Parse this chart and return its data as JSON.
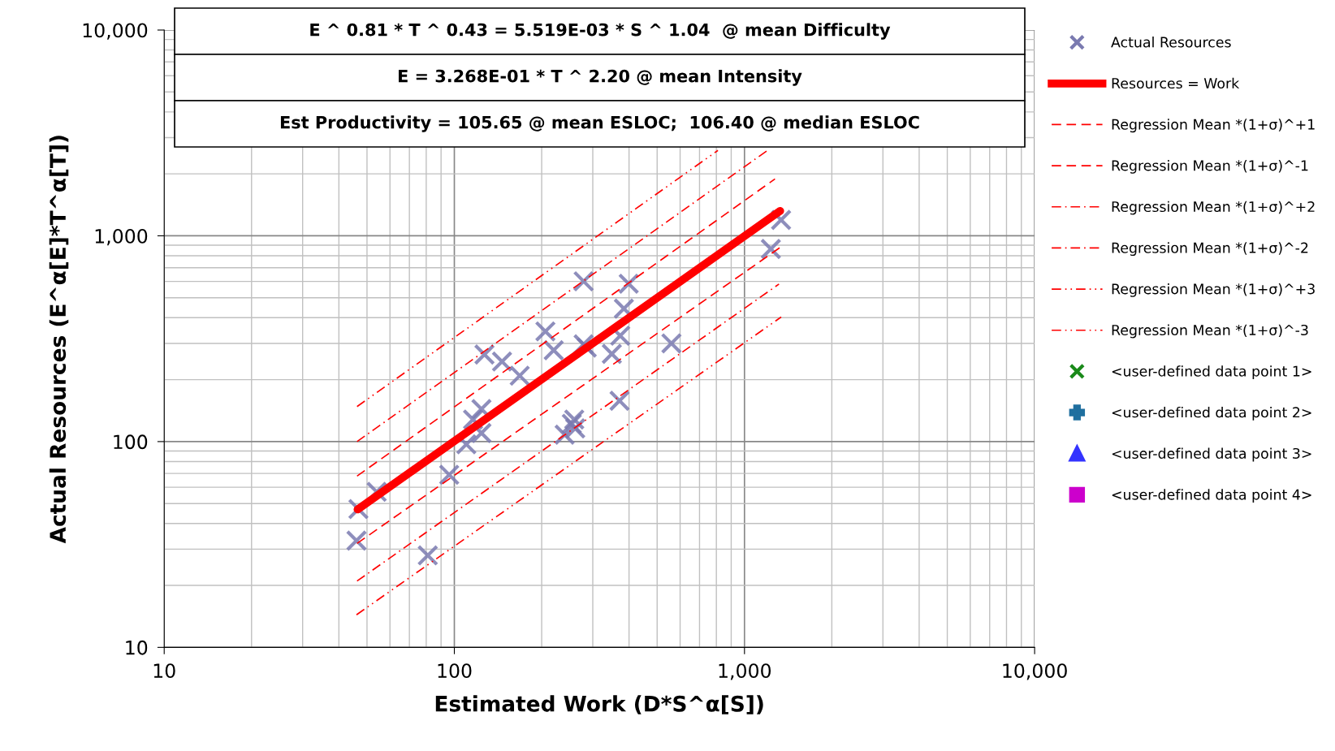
{
  "chart_data": {
    "type": "scatter",
    "xlabel": "Estimated Work (D*S^α[S])",
    "ylabel": "Actual Resources (E^α[E]*T^α[T])",
    "annotations": [
      "E ^ 0.81 * T ^ 0.43 = 5.519E-03 * S ^ 1.04  @ mean Difficulty",
      "E = 3.268E-01 * T ^ 2.20 @ mean Intensity",
      "Est Productivity = 105.65 @ mean ESLOC;  106.40 @ median ESLOC"
    ],
    "log": "xy",
    "xlim": [
      10,
      10000
    ],
    "ylim": [
      10,
      10000
    ],
    "xticks": [
      10,
      100,
      {
        "value": 1000,
        "label": "1,000"
      },
      {
        "value": 10000,
        "label": "10,000"
      }
    ],
    "yticks": [
      10,
      100,
      {
        "value": 1000,
        "label": "1,000"
      },
      {
        "value": 10000,
        "label": "10,000"
      }
    ],
    "grid": true,
    "legend": "right",
    "series": [
      {
        "name": "Actual Resources",
        "marker": "cross",
        "color": "#7a7ab0",
        "x": [
          46.7,
          46,
          54,
          81,
          96,
          110,
          116,
          124,
          124,
          127,
          146,
          168,
          206,
          220,
          279,
          279,
          286,
          240,
          254,
          259,
          261,
          349,
          373,
          384,
          399,
          371,
          560,
          1233,
          1337
        ],
        "values": [
          47,
          33,
          57,
          28,
          69,
          97,
          128,
          144,
          110,
          265,
          245,
          209,
          343,
          278,
          601,
          297,
          286,
          108,
          122,
          128,
          116,
          267,
          327,
          443,
          585,
          158,
          300,
          863,
          1194
        ]
      },
      {
        "name": "Resources = Work",
        "type": "line",
        "line_style": "solid",
        "color": "#ff0000",
        "x": [
          46.4,
          1327
        ],
        "values": [
          46.8,
          1321
        ]
      },
      {
        "name": "Regression Mean *(1+σ)^+1",
        "type": "line",
        "line_style": "dashed",
        "color": "#ff0000",
        "x": [
          46.2,
          1274
        ],
        "values": [
          68,
          1890
        ]
      },
      {
        "name": "Regression Mean *(1+σ)^-1",
        "type": "line",
        "line_style": "dashed",
        "color": "#ff0000",
        "x": [
          46.2,
          1338
        ],
        "values": [
          32,
          885
        ]
      },
      {
        "name": "Regression Mean *(1+σ)^+2",
        "type": "line",
        "line_style": "dashdot",
        "color": "#ff0000",
        "x": [
          46.2,
          1200
        ],
        "values": [
          100,
          2600
        ]
      },
      {
        "name": "Regression Mean *(1+σ)^-2",
        "type": "line",
        "line_style": "dashdot",
        "color": "#ff0000",
        "x": [
          46.2,
          1315
        ],
        "values": [
          21,
          583
        ]
      },
      {
        "name": "Regression Mean *(1+σ)^+3",
        "type": "line",
        "line_style": "dashdotdot",
        "color": "#ff0000",
        "x": [
          46.2,
          810
        ],
        "values": [
          148,
          2600
        ]
      },
      {
        "name": "Regression Mean *(1+σ)^-3",
        "type": "line",
        "line_style": "dashdotdot",
        "color": "#ff0000",
        "x": [
          46,
          1338
        ],
        "values": [
          14.4,
          403
        ]
      },
      {
        "name": "<user-defined data point 1>",
        "marker": "cross",
        "color": "#1a8a1a"
      },
      {
        "name": "<user-defined data point 2>",
        "marker": "plus",
        "color": "#1f6f9f"
      },
      {
        "name": "<user-defined data point 3>",
        "marker": "triangle",
        "color": "#3333ff"
      },
      {
        "name": "<user-defined data point 4>",
        "marker": "square",
        "color": "#cc00cc"
      }
    ]
  }
}
